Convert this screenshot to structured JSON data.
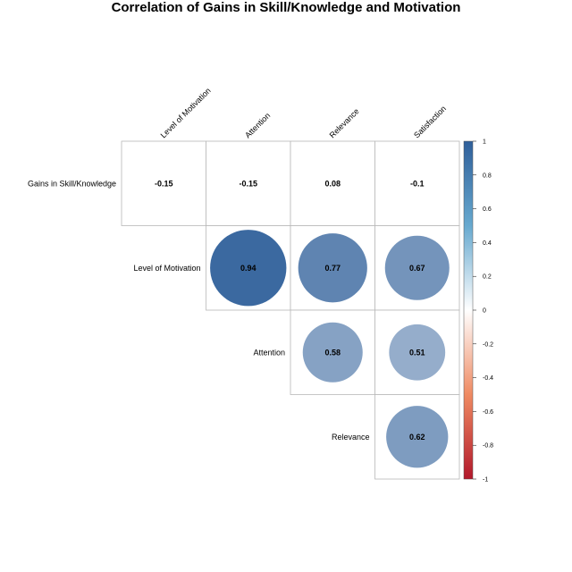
{
  "chart_data": {
    "type": "heatmap",
    "title": "Correlation of Gains in Skill/Knowledge and Motivation",
    "row_labels": [
      "Gains in Skill/Knowledge",
      "Level of Motivation",
      "Attention",
      "Relevance"
    ],
    "column_labels": [
      "Level of Motivation",
      "Attention",
      "Relevance",
      "Satisfaction"
    ],
    "cells": [
      {
        "row": "Gains in Skill/Knowledge",
        "column": "Level of Motivation",
        "value": -0.15
      },
      {
        "row": "Gains in Skill/Knowledge",
        "column": "Attention",
        "value": -0.15
      },
      {
        "row": "Gains in Skill/Knowledge",
        "column": "Relevance",
        "value": 0.08
      },
      {
        "row": "Gains in Skill/Knowledge",
        "column": "Satisfaction",
        "value": -0.1
      },
      {
        "row": "Level of Motivation",
        "column": "Attention",
        "value": 0.94
      },
      {
        "row": "Level of Motivation",
        "column": "Relevance",
        "value": 0.77
      },
      {
        "row": "Level of Motivation",
        "column": "Satisfaction",
        "value": 0.67
      },
      {
        "row": "Attention",
        "column": "Relevance",
        "value": 0.58
      },
      {
        "row": "Attention",
        "column": "Satisfaction",
        "value": 0.51
      },
      {
        "row": "Relevance",
        "column": "Satisfaction",
        "value": 0.62
      }
    ],
    "color_scale": {
      "range": [
        -1,
        1
      ],
      "ticks": [
        "1",
        "0.8",
        "0.6",
        "0.4",
        "0.2",
        "0",
        "-0.2",
        "-0.4",
        "-0.6",
        "-0.8",
        "-1"
      ],
      "negative_color": "#b2182b",
      "neutral_color": "#ffffff",
      "positive_color": "#2f5f9a"
    }
  }
}
